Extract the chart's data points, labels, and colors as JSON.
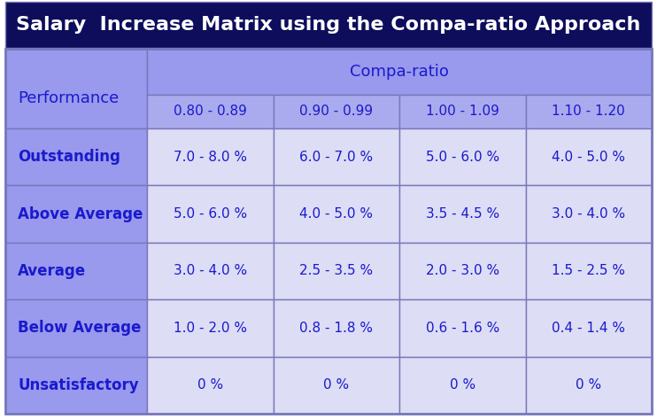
{
  "title": "Salary  Increase Matrix using the Compa-ratio Approach",
  "title_bg": "#0d0d5c",
  "title_color": "#ffffff",
  "title_fontsize": 16,
  "header_bg": "#9999ee",
  "subheader_bg": "#aaaaee",
  "data_cell_bg": "#ddddf5",
  "header_text_color": "#1a1acc",
  "cell_text_color": "#1a1acc",
  "border_color": "#7777bb",
  "compa_label": "Compa-ratio",
  "performance_label": "Performance",
  "col_headers": [
    "0.80 - 0.89",
    "0.90 - 0.99",
    "1.00 - 1.09",
    "1.10 - 1.20"
  ],
  "row_headers": [
    "Outstanding",
    "Above Average",
    "Average",
    "Below Average",
    "Unsatisfactory"
  ],
  "row_bold": [
    true,
    true,
    true,
    true,
    true
  ],
  "data": [
    [
      "7.0 - 8.0 %",
      "6.0 - 7.0 %",
      "5.0 - 6.0 %",
      "4.0 - 5.0 %"
    ],
    [
      "5.0 - 6.0 %",
      "4.0 - 5.0 %",
      "3.5 - 4.5 %",
      "3.0 - 4.0 %"
    ],
    [
      "3.0 - 4.0 %",
      "2.5 - 3.5 %",
      "2.0 - 3.0 %",
      "1.5 - 2.5 %"
    ],
    [
      "1.0 - 2.0 %",
      "0.8 - 1.8 %",
      "0.6 - 1.6 %",
      "0.4 - 1.4 %"
    ],
    [
      "0 %",
      "0 %",
      "0 %",
      "0 %"
    ]
  ],
  "fig_w": 7.42,
  "fig_h": 4.73,
  "dpi": 100
}
